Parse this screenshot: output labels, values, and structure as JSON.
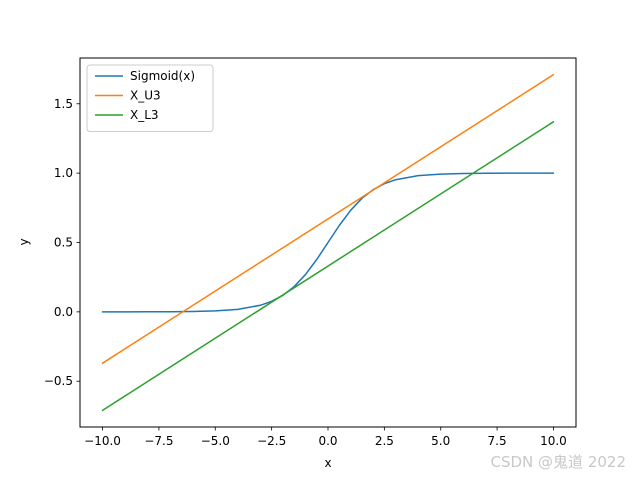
{
  "chart_data": {
    "type": "line",
    "title": "",
    "xlabel": "x",
    "ylabel": "y",
    "xlim": [
      -11.0,
      11.0
    ],
    "ylim": [
      -0.83,
      1.83
    ],
    "xticks": [
      -10.0,
      -7.5,
      -5.0,
      -2.5,
      0.0,
      2.5,
      5.0,
      7.5,
      10.0
    ],
    "xtick_labels": [
      "−10.0",
      "−7.5",
      "−5.0",
      "−2.5",
      "0.0",
      "2.5",
      "5.0",
      "7.5",
      "10.0"
    ],
    "yticks": [
      -0.5,
      0.0,
      0.5,
      1.0,
      1.5
    ],
    "ytick_labels": [
      "−0.5",
      "0.0",
      "0.5",
      "1.0",
      "1.5"
    ],
    "grid": false,
    "legend_position": "top-left",
    "series": [
      {
        "name": "Sigmoid(x)",
        "color": "#1f77b4",
        "x": [
          -10,
          -9,
          -8,
          -7,
          -6,
          -5,
          -4,
          -3,
          -2.5,
          -2,
          -1.5,
          -1,
          -0.5,
          0,
          0.5,
          1,
          1.5,
          2,
          2.5,
          3,
          4,
          5,
          6,
          7,
          8,
          9,
          10
        ],
        "y": [
          4.54e-05,
          0.0001234,
          0.0003354,
          0.000911,
          0.002473,
          0.006693,
          0.01799,
          0.04743,
          0.07586,
          0.1192,
          0.1824,
          0.2689,
          0.3775,
          0.5,
          0.6225,
          0.7311,
          0.8176,
          0.8808,
          0.9241,
          0.9526,
          0.982,
          0.9933,
          0.9975,
          0.9991,
          0.9997,
          0.9999,
          1.0
        ]
      },
      {
        "name": "X_U3",
        "color": "#ff7f0e",
        "x": [
          -10,
          10
        ],
        "y": [
          -0.37,
          1.71
        ]
      },
      {
        "name": "X_L3",
        "color": "#2ca02c",
        "x": [
          -10,
          10
        ],
        "y": [
          -0.71,
          1.37
        ]
      }
    ]
  },
  "watermark": "CSDN @鬼道 2022"
}
